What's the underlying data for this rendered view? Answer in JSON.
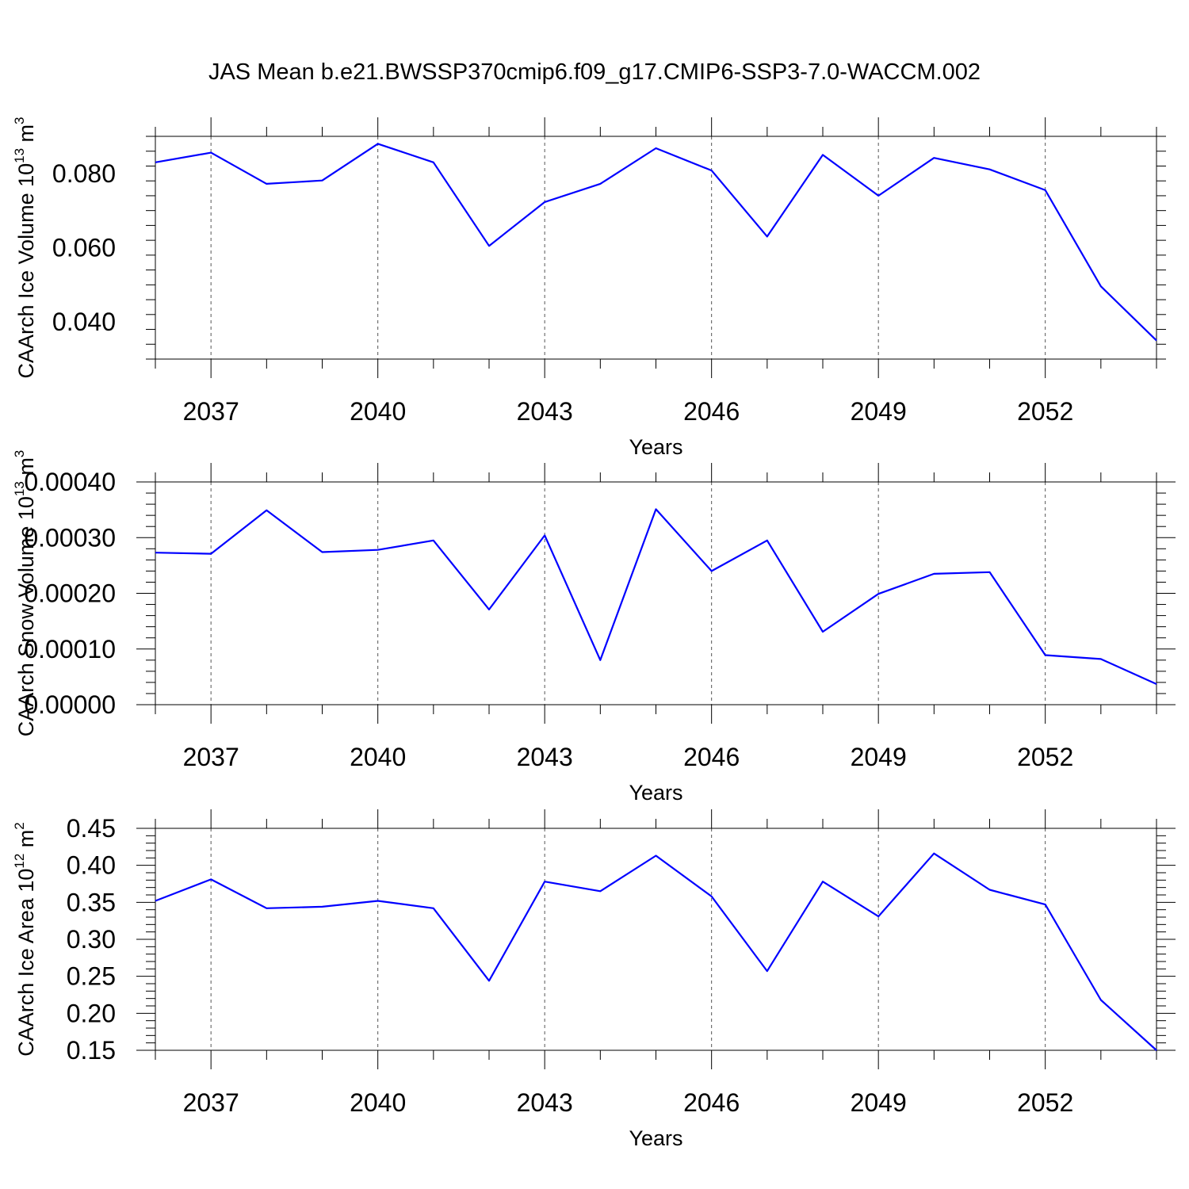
{
  "title": "JAS Mean b.e21.BWSSP370cmip6.f09_g17.CMIP6-SSP3-7.0-WACCM.002",
  "colors": {
    "series": "#0000ff",
    "axis": "#000000",
    "grid": "#555555"
  },
  "chart_data": [
    {
      "type": "line",
      "ylabel": {
        "main": "CAArch Ice Volume 10",
        "exp": "13",
        "unit": " m",
        "unit_exp": "3"
      },
      "xlabel": "Years",
      "xlim": [
        2036,
        2054
      ],
      "ylim": [
        0.03,
        0.09
      ],
      "xticks": [
        2037,
        2040,
        2043,
        2046,
        2049,
        2052
      ],
      "xtick_labels": [
        "2037",
        "2040",
        "2043",
        "2046",
        "2049",
        "2052"
      ],
      "yticks": [
        0.04,
        0.06,
        0.08
      ],
      "ytick_labels": [
        "0.040",
        "0.060",
        "0.080"
      ],
      "grid": "vertical dashed at major x ticks",
      "series": [
        {
          "x": [
            2036,
            2037,
            2038,
            2039,
            2040,
            2041,
            2042,
            2043,
            2044,
            2045,
            2046,
            2047,
            2048,
            2049,
            2050,
            2051,
            2052,
            2053,
            2054
          ],
          "values": [
            0.083,
            0.0856,
            0.0772,
            0.0781,
            0.088,
            0.083,
            0.0605,
            0.0723,
            0.0772,
            0.0868,
            0.0808,
            0.063,
            0.085,
            0.074,
            0.0842,
            0.0811,
            0.0755,
            0.0496,
            0.035
          ]
        }
      ]
    },
    {
      "type": "line",
      "ylabel": {
        "main": "CAArch Snow Volume 10",
        "exp": "13",
        "unit": " m",
        "unit_exp": "3"
      },
      "xlabel": "Years",
      "xlim": [
        2036,
        2054
      ],
      "ylim": [
        0.0,
        0.0004
      ],
      "xticks": [
        2037,
        2040,
        2043,
        2046,
        2049,
        2052
      ],
      "xtick_labels": [
        "2037",
        "2040",
        "2043",
        "2046",
        "2049",
        "2052"
      ],
      "yticks": [
        0.0,
        0.0001,
        0.0002,
        0.0003,
        0.0004
      ],
      "ytick_labels": [
        "0.00000",
        "0.00010",
        "0.00020",
        "0.00030",
        "0.00040"
      ],
      "grid": "vertical dashed at major x ticks",
      "series": [
        {
          "x": [
            2036,
            2037,
            2038,
            2039,
            2040,
            2041,
            2042,
            2043,
            2044,
            2045,
            2046,
            2047,
            2048,
            2049,
            2050,
            2051,
            2052,
            2053,
            2054
          ],
          "values": [
            0.000273,
            0.000271,
            0.000349,
            0.000274,
            0.000278,
            0.000295,
            0.000171,
            0.000304,
            8e-05,
            0.000351,
            0.00024,
            0.000295,
            0.000131,
            0.000199,
            0.000235,
            0.000238,
            8.9e-05,
            8.2e-05,
            3.7e-05
          ]
        }
      ]
    },
    {
      "type": "line",
      "ylabel": {
        "main": "CAArch Ice Area 10",
        "exp": "12",
        "unit": " m",
        "unit_exp": "2"
      },
      "xlabel": "Years",
      "xlim": [
        2036,
        2054
      ],
      "ylim": [
        0.15,
        0.45
      ],
      "xticks": [
        2037,
        2040,
        2043,
        2046,
        2049,
        2052
      ],
      "xtick_labels": [
        "2037",
        "2040",
        "2043",
        "2046",
        "2049",
        "2052"
      ],
      "yticks": [
        0.15,
        0.2,
        0.25,
        0.3,
        0.35,
        0.4,
        0.45
      ],
      "ytick_labels": [
        "0.15",
        "0.20",
        "0.25",
        "0.30",
        "0.35",
        "0.40",
        "0.45"
      ],
      "grid": "vertical dashed at major x ticks",
      "series": [
        {
          "x": [
            2036,
            2037,
            2038,
            2039,
            2040,
            2041,
            2042,
            2043,
            2044,
            2045,
            2046,
            2047,
            2048,
            2049,
            2050,
            2051,
            2052,
            2053,
            2054
          ],
          "values": [
            0.352,
            0.381,
            0.342,
            0.344,
            0.352,
            0.342,
            0.244,
            0.378,
            0.365,
            0.413,
            0.358,
            0.257,
            0.378,
            0.331,
            0.416,
            0.367,
            0.347,
            0.218,
            0.15
          ]
        }
      ]
    }
  ]
}
